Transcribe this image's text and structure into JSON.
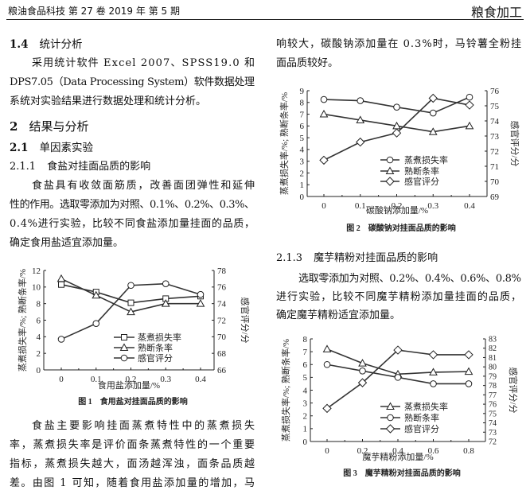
{
  "header": {
    "journal": "粮油食品科技 第 27 卷 2019 年 第 5 期",
    "section": "粮食加工"
  },
  "left": {
    "s14_num": "1.4",
    "s14_title": "统计分析",
    "p1": [
      "采用统计软件 Excel 2007、SPSS19.0 和",
      "DPS7.05（Data Processing System）软件数据处理",
      "系统对实验结果进行数据处理和统计分析。"
    ],
    "s2_num": "2",
    "s2_title": "结果与分析",
    "s21_num": "2.1",
    "s21_title": "单因素实验",
    "s211_num": "2.1.1",
    "s211_title": "食盐对挂面品质的影响",
    "p2": [
      "食盐具有收敛面筋质，改善面团弹性和延伸",
      "性的作用。选取零添加为对照、0.1%、0.2%、0.3%、",
      "0.4%进行实验，比较不同食盐添加量挂面的品质，",
      "确定食用盐适宜添加量。"
    ],
    "p3": [
      "食盐主要影响挂面蒸煮特性中的蒸煮损失",
      "率，蒸煮损失率是评价面条蒸煮特性的一个重要",
      "指标，蒸煮损失越大，面汤越浑浊，面条品质越",
      "差。由图 1 可知，随着食用盐添加量的增加，马"
    ]
  },
  "right": {
    "p0": [
      "响较大，碳酸钠添加量在 0.3%时，马铃薯全粉挂",
      "面品质较好。"
    ],
    "s213_num": "2.1.3",
    "s213_title": "魔芋精粉对挂面品质的影响",
    "p4": [
      "选取零添加为对照、0.2%、0.4%、0.6%、0.8%",
      "进行实验，比较不同魔芋精粉添加量挂面的品质，",
      "确定魔芋精粉适宜添加量。"
    ]
  },
  "chart_data": [
    {
      "type": "line",
      "caption": "图 1　食用盐对挂面品质的影响",
      "xlabel": "食用盐添加量/%",
      "ylabel": "蒸煮损失率/%; 熟断条率/%",
      "y2label": "感官评分/分",
      "categories": [
        "0",
        "0.1",
        "0.2",
        "0.3",
        "0.4"
      ],
      "ylim": [
        0,
        12
      ],
      "yticks": [
        0,
        2,
        4,
        6,
        8,
        10,
        12
      ],
      "y2lim": [
        66,
        78
      ],
      "y2ticks": [
        66,
        68,
        70,
        72,
        74,
        76,
        78
      ],
      "legend": "center-right",
      "series": [
        {
          "name": "蒸煮损失率",
          "marker": "square",
          "axis": "left",
          "values": [
            10.3,
            9.4,
            8.1,
            8.6,
            8.9
          ]
        },
        {
          "name": "熟断条率",
          "marker": "triangle",
          "axis": "left",
          "values": [
            11.0,
            9.0,
            7.0,
            8.0,
            8.0
          ]
        },
        {
          "name": "感官评分",
          "marker": "circle",
          "axis": "right",
          "values": [
            69.7,
            71.6,
            76.2,
            76.4,
            75.1
          ]
        }
      ]
    },
    {
      "type": "line",
      "caption": "图 2　碳酸钠对挂面品质的影响",
      "xlabel": "碳酸钠添加量/%",
      "ylabel": "蒸煮损失率/%; 熟断条率/%",
      "y2label": "感官评分/分",
      "categories": [
        "0",
        "0.1",
        "0.2",
        "0.3",
        "0.4"
      ],
      "ylim": [
        0,
        9
      ],
      "yticks": [
        0,
        1,
        2,
        3,
        4,
        5,
        6,
        7,
        8,
        9
      ],
      "y2lim": [
        69,
        76
      ],
      "y2ticks": [
        69,
        70,
        71,
        72,
        73,
        74,
        75,
        76
      ],
      "legend": "center-right",
      "series": [
        {
          "name": "蒸煮损失率",
          "marker": "circle",
          "axis": "left",
          "values": [
            8.25,
            8.15,
            7.6,
            7.1,
            8.45
          ]
        },
        {
          "name": "熟断条率",
          "marker": "triangle",
          "axis": "left",
          "values": [
            7.0,
            6.5,
            6.0,
            5.5,
            6.0
          ]
        },
        {
          "name": "感官评分",
          "marker": "diamond",
          "axis": "right",
          "values": [
            71.4,
            72.6,
            73.2,
            75.5,
            75.05
          ]
        }
      ]
    },
    {
      "type": "line",
      "caption": "图 3　魔芋精粉对挂面品质的影响",
      "xlabel": "魔芋精粉添加量/%",
      "ylabel": "蒸煮损失率/%; 熟断条率/%",
      "y2label": "感官评分/分",
      "categories": [
        "0",
        "0.2",
        "0.4",
        "0.6",
        "0.8"
      ],
      "ylim": [
        0,
        8
      ],
      "yticks": [
        0,
        1,
        2,
        3,
        4,
        5,
        6,
        7,
        8
      ],
      "y2lim": [
        72,
        83
      ],
      "y2ticks": [
        72,
        73,
        74,
        75,
        76,
        77,
        78,
        79,
        80,
        81,
        82,
        83
      ],
      "legend": "center-right",
      "series": [
        {
          "name": "蒸煮损失率",
          "marker": "triangle",
          "axis": "left",
          "values": [
            7.2,
            6.1,
            5.25,
            5.4,
            5.45
          ]
        },
        {
          "name": "熟断条率",
          "marker": "circle",
          "axis": "left",
          "values": [
            6.0,
            5.5,
            5.0,
            4.5,
            4.5
          ]
        },
        {
          "name": "感官评分",
          "marker": "diamond",
          "axis": "right",
          "values": [
            75.55,
            78.3,
            81.8,
            81.3,
            81.3
          ]
        }
      ]
    }
  ]
}
